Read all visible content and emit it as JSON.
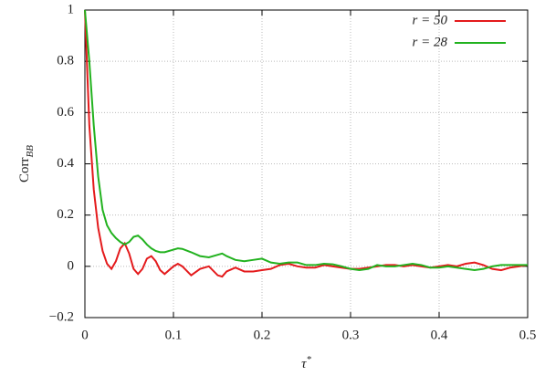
{
  "chart_data": {
    "type": "line",
    "xlabel": {
      "text": "τ",
      "superscript": "*"
    },
    "ylabel": {
      "text": "Corr",
      "subscript": "BB"
    },
    "x": [
      0,
      0.005,
      0.01,
      0.015,
      0.02,
      0.025,
      0.03,
      0.035,
      0.04,
      0.045,
      0.05,
      0.055,
      0.06,
      0.065,
      0.07,
      0.075,
      0.08,
      0.085,
      0.09,
      0.1,
      0.105,
      0.11,
      0.12,
      0.13,
      0.14,
      0.15,
      0.155,
      0.16,
      0.17,
      0.18,
      0.19,
      0.2,
      0.21,
      0.22,
      0.23,
      0.24,
      0.25,
      0.26,
      0.27,
      0.28,
      0.29,
      0.3,
      0.31,
      0.32,
      0.33,
      0.34,
      0.35,
      0.36,
      0.37,
      0.38,
      0.39,
      0.4,
      0.41,
      0.42,
      0.43,
      0.44,
      0.45,
      0.46,
      0.47,
      0.48,
      0.49,
      0.5
    ],
    "series": [
      {
        "name": "r = 50",
        "color": "#e41a1c",
        "values": [
          1,
          0.55,
          0.3,
          0.15,
          0.06,
          0.01,
          -0.01,
          0.02,
          0.07,
          0.09,
          0.05,
          -0.01,
          -0.03,
          -0.01,
          0.03,
          0.04,
          0.02,
          -0.015,
          -0.03,
          0,
          0.01,
          0,
          -0.035,
          -0.01,
          0,
          -0.035,
          -0.04,
          -0.02,
          -0.005,
          -0.02,
          -0.02,
          -0.015,
          -0.01,
          0.005,
          0.01,
          0,
          -0.005,
          -0.005,
          0.005,
          0,
          -0.005,
          -0.01,
          -0.01,
          -0.005,
          0,
          0.005,
          0.005,
          0,
          0.005,
          0,
          -0.005,
          0,
          0.005,
          0,
          0.01,
          0.015,
          0.005,
          -0.01,
          -0.015,
          -0.005,
          0,
          0.005
        ]
      },
      {
        "name": "r = 28",
        "color": "#22b21f",
        "values": [
          1,
          0.8,
          0.55,
          0.35,
          0.22,
          0.16,
          0.13,
          0.11,
          0.095,
          0.085,
          0.095,
          0.115,
          0.12,
          0.105,
          0.085,
          0.07,
          0.06,
          0.055,
          0.055,
          0.065,
          0.07,
          0.068,
          0.055,
          0.04,
          0.035,
          0.045,
          0.05,
          0.04,
          0.025,
          0.02,
          0.025,
          0.03,
          0.015,
          0.01,
          0.015,
          0.015,
          0.005,
          0.005,
          0.01,
          0.008,
          0,
          -0.01,
          -0.015,
          -0.01,
          0.005,
          0,
          0,
          0.005,
          0.01,
          0.005,
          -0.005,
          -0.005,
          0,
          -0.005,
          -0.01,
          -0.015,
          -0.01,
          0,
          0.005,
          0.005,
          0.005,
          0.005
        ]
      }
    ],
    "xlim": [
      0,
      0.5
    ],
    "xticks": [
      0,
      0.1,
      0.2,
      0.3,
      0.4,
      0.5
    ],
    "ylim": [
      -0.2,
      1
    ],
    "yticks": [
      {
        "value": -0.2,
        "label": "−0.2"
      },
      0,
      0.2,
      0.4,
      0.6,
      0.8,
      1
    ],
    "grid": true,
    "legend": "top-right"
  }
}
